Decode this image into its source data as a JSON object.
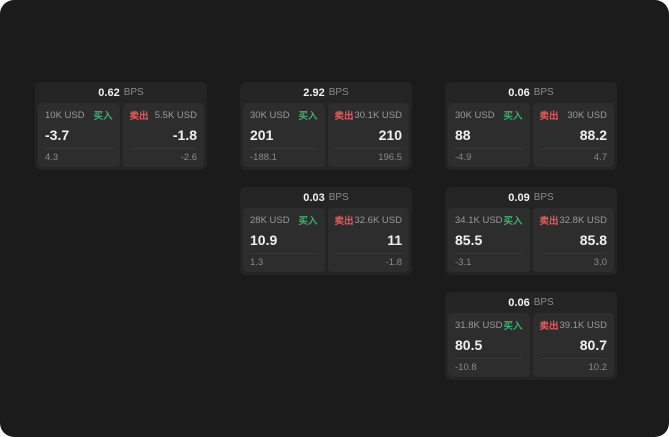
{
  "colors": {
    "buy": "#3fae6e",
    "sell": "#e05c5c",
    "background": "#1b1b1b",
    "card": "#242424",
    "panel": "#2d2d2d"
  },
  "cards": [
    {
      "bps_value": "0.62",
      "bps_unit": "BPS",
      "buy": {
        "amount": "10K USD",
        "tag": "买入",
        "price": "-3.7",
        "sub": "4.3"
      },
      "sell": {
        "amount": "5.5K USD",
        "tag": "卖出",
        "price": "-1.8",
        "sub": "-2.6"
      }
    },
    {
      "bps_value": "2.92",
      "bps_unit": "BPS",
      "buy": {
        "amount": "30K USD",
        "tag": "买入",
        "price": "201",
        "sub": "-188.1"
      },
      "sell": {
        "amount": "30.1K USD",
        "tag": "卖出",
        "price": "210",
        "sub": "196.5"
      }
    },
    {
      "bps_value": "0.06",
      "bps_unit": "BPS",
      "buy": {
        "amount": "30K USD",
        "tag": "买入",
        "price": "88",
        "sub": "-4.9"
      },
      "sell": {
        "amount": "30K USD",
        "tag": "卖出",
        "price": "88.2",
        "sub": "4.7"
      }
    },
    {
      "bps_value": "0.03",
      "bps_unit": "BPS",
      "buy": {
        "amount": "28K USD",
        "tag": "买入",
        "price": "10.9",
        "sub": "1.3"
      },
      "sell": {
        "amount": "32.6K USD",
        "tag": "卖出",
        "price": "11",
        "sub": "-1.8"
      }
    },
    {
      "bps_value": "0.09",
      "bps_unit": "BPS",
      "buy": {
        "amount": "34.1K USD",
        "tag": "买入",
        "price": "85.5",
        "sub": "-3.1"
      },
      "sell": {
        "amount": "32.8K USD",
        "tag": "卖出",
        "price": "85.8",
        "sub": "3.0"
      }
    },
    {
      "bps_value": "0.06",
      "bps_unit": "BPS",
      "buy": {
        "amount": "31.8K USD",
        "tag": "买入",
        "price": "80.5",
        "sub": "-10.8"
      },
      "sell": {
        "amount": "39.1K USD",
        "tag": "卖出",
        "price": "80.7",
        "sub": "10.2"
      }
    }
  ]
}
